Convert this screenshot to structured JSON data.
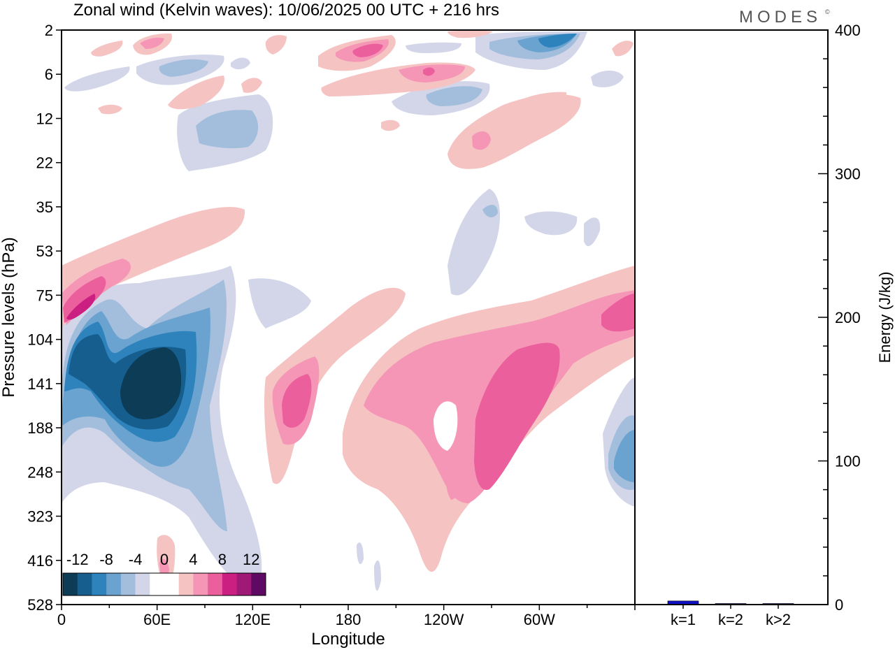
{
  "title": "Zonal wind (Kelvin waves):  10/06/2025  00 UTC  + 216 hrs",
  "brand": "MODES",
  "brand_mark": "©",
  "chart_data": [
    {
      "type": "heatmap",
      "title": "Zonal wind (Kelvin waves):  10/06/2025  00 UTC  + 216 hrs",
      "xlabel": "Longitude",
      "ylabel": "Pressure levels (hPa)",
      "x_tick_labels": [
        "0",
        "60E",
        "120E",
        "180",
        "120W",
        "60W"
      ],
      "x_ticks_deg": [
        0,
        60,
        120,
        180,
        240,
        300
      ],
      "xlim": [
        0,
        360
      ],
      "y_tick_labels": [
        "2",
        "6",
        "12",
        "22",
        "35",
        "53",
        "75",
        "104",
        "141",
        "188",
        "248",
        "323",
        "416",
        "528"
      ],
      "y_axis": "pressure levels, increasing downward (2 hPa at top, 528 hPa at bottom)",
      "colorbar": {
        "labels": [
          "-12",
          "-8",
          "-4",
          "0",
          "4",
          "8",
          "12"
        ],
        "levels": [
          -14,
          -12,
          -10,
          -8,
          -6,
          -4,
          -2,
          0,
          2,
          4,
          6,
          8,
          10,
          12,
          14
        ],
        "colors": [
          "#0c3c56",
          "#155e8e",
          "#2e83bd",
          "#6aa3cf",
          "#a3bedc",
          "#d2d6e8",
          "#ffffff",
          "#ffffff",
          "#f6c3c3",
          "#f596b6",
          "#ea5f9c",
          "#cb2082",
          "#9e1a76",
          "#5f0a62"
        ]
      },
      "features": [
        {
          "kind": "min",
          "lon": 55,
          "level": "141",
          "value": -14
        },
        {
          "kind": "min",
          "lon": 15,
          "level": "104",
          "value": -10
        },
        {
          "kind": "max",
          "lon": 15,
          "level": "75",
          "value": 10
        },
        {
          "kind": "max",
          "lon": 270,
          "level": "141",
          "value": 8
        },
        {
          "kind": "max",
          "lon": 150,
          "level": "141",
          "value": 8
        },
        {
          "kind": "max",
          "lon": 350,
          "level": "75",
          "value": 8
        },
        {
          "kind": "min",
          "lon": 355,
          "level": "188",
          "value": -8
        },
        {
          "kind": "min",
          "lon": 315,
          "level": "2",
          "value": -12
        },
        {
          "kind": "max",
          "lon": 195,
          "level": "2",
          "value": 8
        }
      ]
    },
    {
      "type": "bar",
      "ylabel": "Energy (J/kg)",
      "ylim": [
        0,
        400
      ],
      "y_tick_labels": [
        "0",
        "100",
        "200",
        "300",
        "400"
      ],
      "categories": [
        "k=1",
        "k=2",
        "k>2"
      ],
      "values": [
        2.5,
        0.4,
        0.5
      ],
      "bar_color": "#1010c8"
    }
  ]
}
